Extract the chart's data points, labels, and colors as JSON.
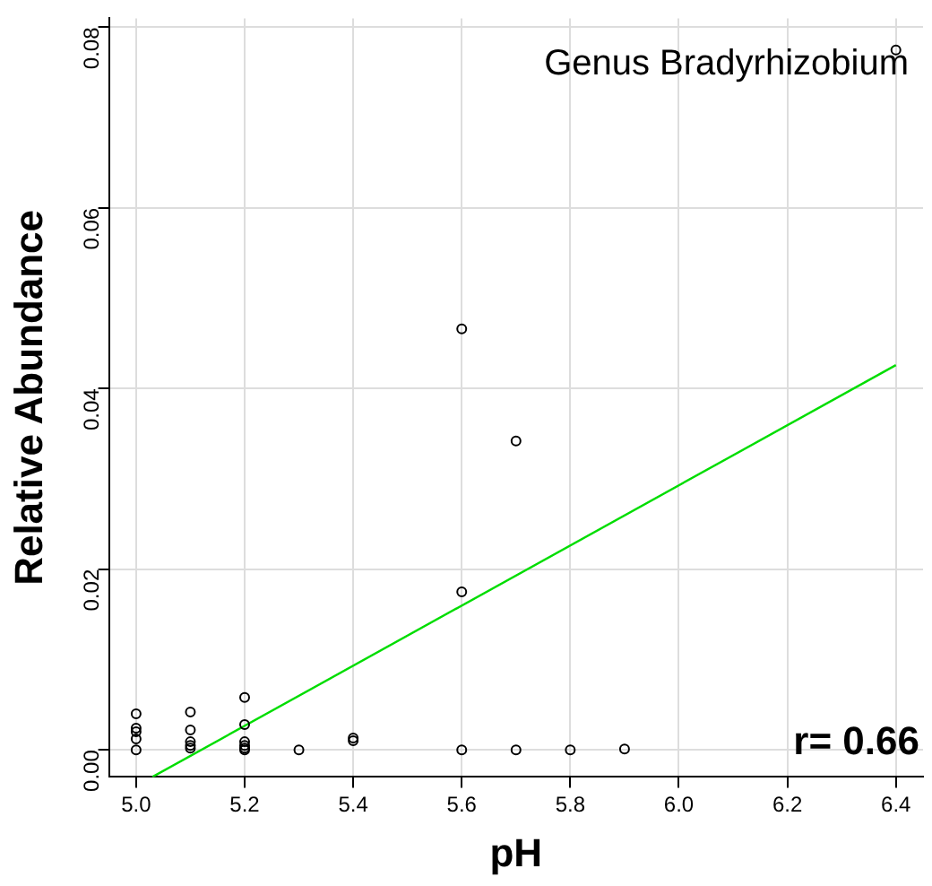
{
  "chart_data": {
    "type": "scatter",
    "xlabel": "pH",
    "ylabel": "Relative Abundance",
    "annotations": [
      "Genus Bradyrhizobium",
      "r= 0.66"
    ],
    "series": [
      {
        "color": "#000000",
        "marker": "circle",
        "x": [
          5.0,
          5.0,
          5.0,
          5.0,
          5.0,
          5.1,
          5.1,
          5.1,
          5.1,
          5.1,
          5.2,
          5.2,
          5.2,
          5.2,
          5.2,
          5.2,
          5.3,
          5.4,
          5.4,
          5.6,
          5.6,
          5.6,
          5.7,
          5.7,
          5.8,
          5.9,
          6.4
        ],
        "values": [
          0.004,
          0.0024,
          0.002,
          0.0012,
          0,
          0.0042,
          0.0022,
          0.0009,
          0.0005,
          0.0002,
          0.0058,
          0.0028,
          0.0009,
          0.0005,
          0.0002,
          0,
          0,
          0.0013,
          0.001,
          0.0466,
          0.0175,
          0,
          0.0342,
          0,
          0,
          0.0001,
          0.0775
        ]
      },
      {
        "type": "line",
        "marker": "none",
        "color": "#00dd00",
        "x": [
          5.03,
          6.4
        ],
        "values": [
          -0.003,
          0.0426
        ]
      }
    ],
    "xlim": [
      4.95,
      6.45
    ],
    "ylim": [
      -0.003,
      0.081
    ],
    "xticks": [
      {
        "value": 5,
        "label": "5.0"
      },
      5.2,
      5.4,
      5.6,
      5.8,
      {
        "value": 6,
        "label": "6.0"
      },
      6.2,
      6.4
    ],
    "yticks": [
      {
        "value": 0,
        "label": "0.00"
      },
      0.02,
      0.04,
      0.06,
      0.08
    ],
    "grid": true,
    "legend": false
  }
}
